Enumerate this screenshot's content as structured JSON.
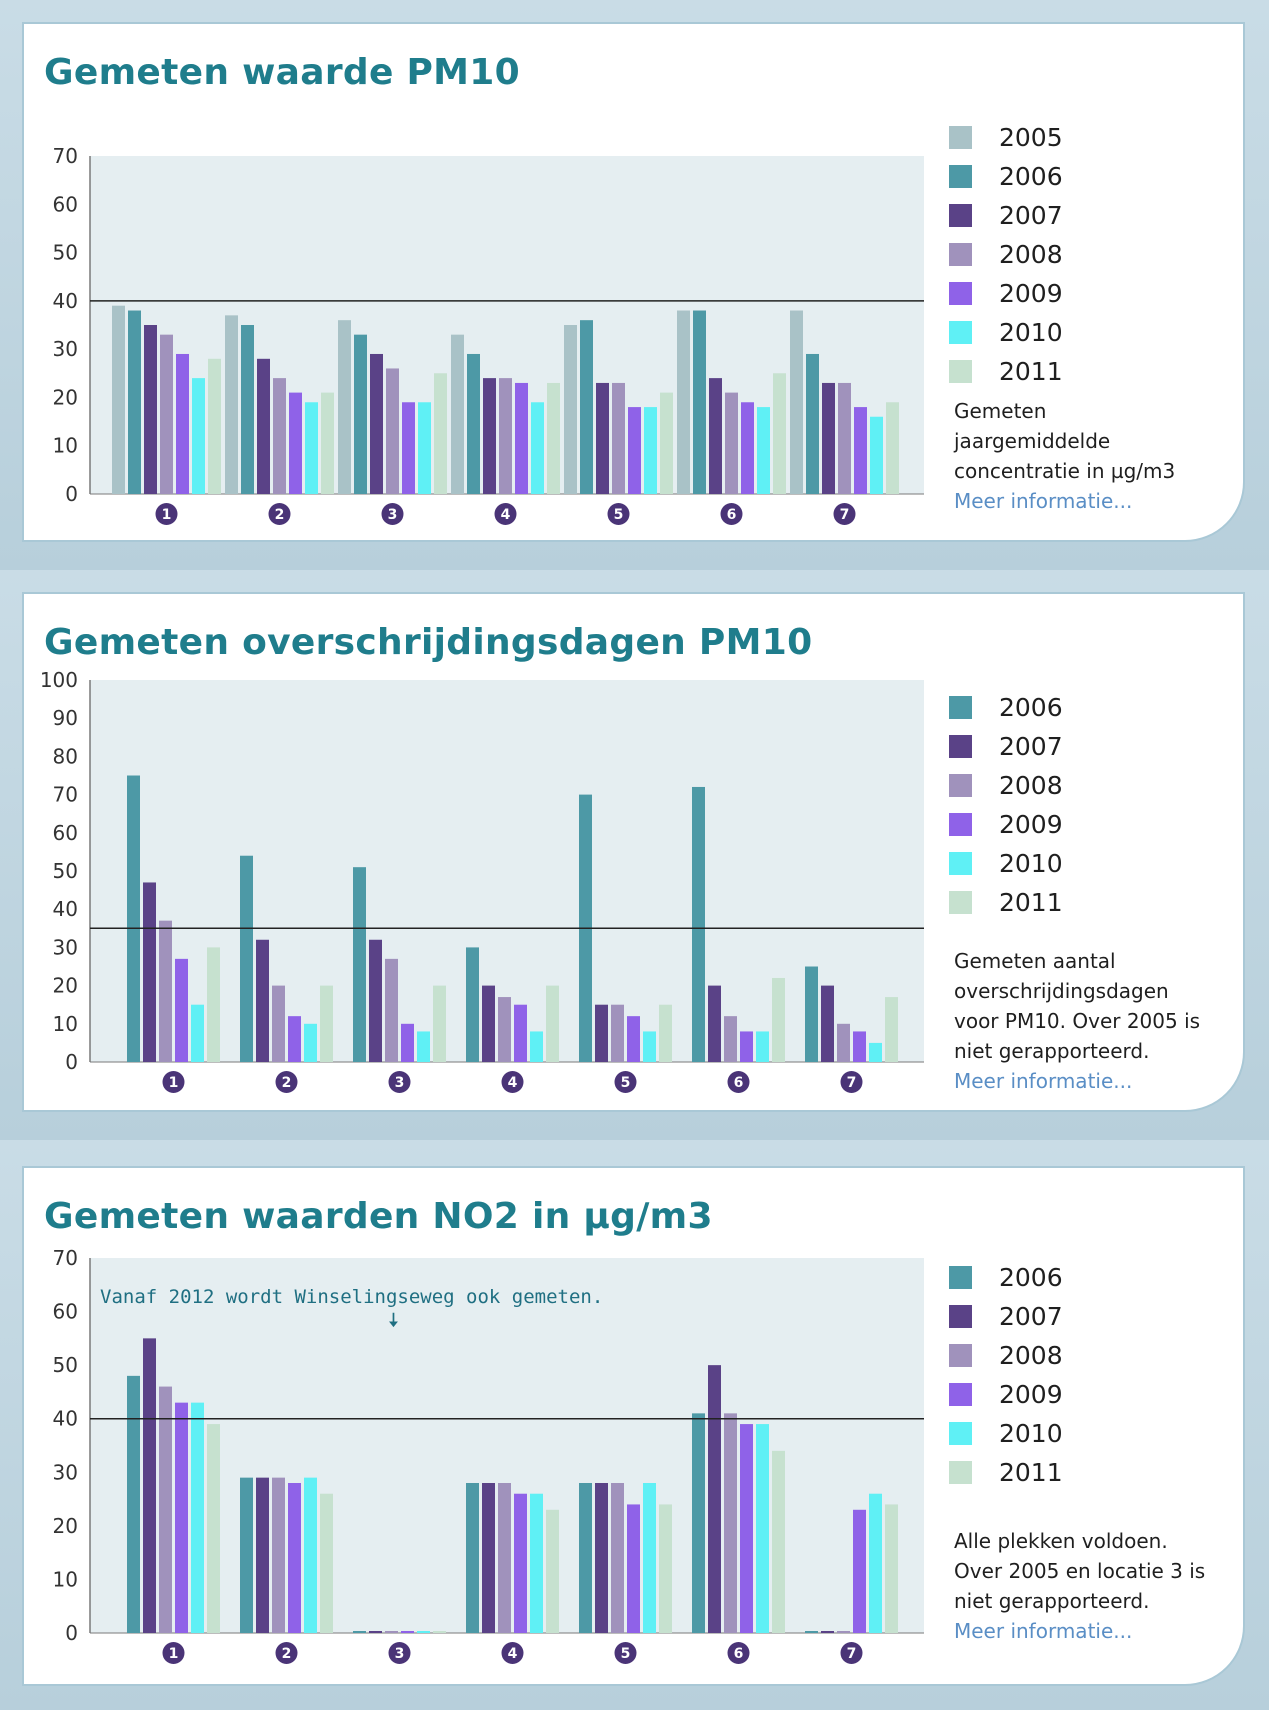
{
  "legend_colors": {
    "2005": "#a9c2c7",
    "2006": "#4d99a6",
    "2007": "#5a4287",
    "2008": "#a092bc",
    "2009": "#8f62e8",
    "2010": "#5ff0f5",
    "2011": "#c6e1cf"
  },
  "charts": [
    {
      "title": "Gemeten waarde PM10",
      "description": [
        "Gemeten",
        "jaargemiddelde",
        "concentratie in µg/m3"
      ],
      "more_link": "Meer informatie...",
      "annotation": null,
      "chart_data": {
        "type": "bar",
        "title": "Gemeten waarde PM10",
        "categories": [
          "1",
          "2",
          "3",
          "4",
          "5",
          "6",
          "7"
        ],
        "series": [
          {
            "name": "2005",
            "values": [
              39,
              37,
              36,
              33,
              35,
              38,
              38
            ]
          },
          {
            "name": "2006",
            "values": [
              38,
              35,
              33,
              29,
              36,
              38,
              29
            ]
          },
          {
            "name": "2007",
            "values": [
              35,
              28,
              29,
              24,
              23,
              24,
              23
            ]
          },
          {
            "name": "2008",
            "values": [
              33,
              24,
              26,
              24,
              23,
              21,
              23
            ]
          },
          {
            "name": "2009",
            "values": [
              29,
              21,
              19,
              23,
              18,
              19,
              18
            ]
          },
          {
            "name": "2010",
            "values": [
              24,
              19,
              19,
              19,
              18,
              18,
              16
            ]
          },
          {
            "name": "2011",
            "values": [
              28,
              21,
              25,
              23,
              21,
              25,
              19
            ]
          }
        ],
        "y_ticks": [
          0,
          10,
          20,
          30,
          40,
          50,
          60,
          70
        ],
        "ylim": [
          0,
          70
        ],
        "threshold": 40,
        "xlabel": "",
        "ylabel": "",
        "legend": "right",
        "grid": false
      }
    },
    {
      "title": "Gemeten overschrijdingsdagen PM10",
      "description": [
        "Gemeten aantal",
        "overschrijdingsdagen",
        "voor PM10. Over 2005 is",
        "niet gerapporteerd."
      ],
      "more_link": "Meer informatie...",
      "annotation": null,
      "chart_data": {
        "type": "bar",
        "title": "Gemeten overschrijdingsdagen PM10",
        "categories": [
          "1",
          "2",
          "3",
          "4",
          "5",
          "6",
          "7"
        ],
        "series": [
          {
            "name": "2006",
            "values": [
              75,
              54,
              51,
              30,
              70,
              72,
              25
            ]
          },
          {
            "name": "2007",
            "values": [
              47,
              32,
              32,
              20,
              15,
              20,
              20
            ]
          },
          {
            "name": "2008",
            "values": [
              37,
              20,
              27,
              17,
              15,
              12,
              10
            ]
          },
          {
            "name": "2009",
            "values": [
              27,
              12,
              10,
              15,
              12,
              8,
              8
            ]
          },
          {
            "name": "2010",
            "values": [
              15,
              10,
              8,
              8,
              8,
              8,
              5
            ]
          },
          {
            "name": "2011",
            "values": [
              30,
              20,
              20,
              20,
              15,
              22,
              17
            ]
          }
        ],
        "y_ticks": [
          0,
          10,
          20,
          30,
          40,
          50,
          60,
          70,
          80,
          90,
          100
        ],
        "ylim": [
          0,
          100
        ],
        "threshold": 35,
        "xlabel": "",
        "ylabel": "",
        "legend": "right",
        "grid": false
      }
    },
    {
      "title": "Gemeten waarden NO2 in µg/m3",
      "description": [
        "Alle plekken voldoen.",
        "Over 2005 en locatie 3 is",
        "niet gerapporteerd."
      ],
      "more_link": "Meer informatie...",
      "annotation": "Vanaf 2012 wordt  Winselingseweg ook gemeten.",
      "chart_data": {
        "type": "bar",
        "title": "Gemeten waarden NO2 in µg/m3",
        "categories": [
          "1",
          "2",
          "3",
          "4",
          "5",
          "6",
          "7"
        ],
        "series": [
          {
            "name": "2006",
            "values": [
              48,
              29,
              0,
              28,
              28,
              41,
              0
            ]
          },
          {
            "name": "2007",
            "values": [
              55,
              29,
              0,
              28,
              28,
              50,
              0
            ]
          },
          {
            "name": "2008",
            "values": [
              46,
              29,
              0,
              28,
              28,
              41,
              0
            ]
          },
          {
            "name": "2009",
            "values": [
              43,
              28,
              0,
              26,
              24,
              39,
              23
            ]
          },
          {
            "name": "2010",
            "values": [
              43,
              29,
              0,
              26,
              28,
              39,
              26
            ]
          },
          {
            "name": "2011",
            "values": [
              39,
              26,
              0,
              23,
              24,
              34,
              24
            ]
          }
        ],
        "y_ticks": [
          0,
          10,
          20,
          30,
          40,
          50,
          60,
          70
        ],
        "ylim": [
          0,
          70
        ],
        "threshold": 40,
        "xlabel": "",
        "ylabel": "",
        "legend": "right",
        "grid": false
      }
    }
  ]
}
